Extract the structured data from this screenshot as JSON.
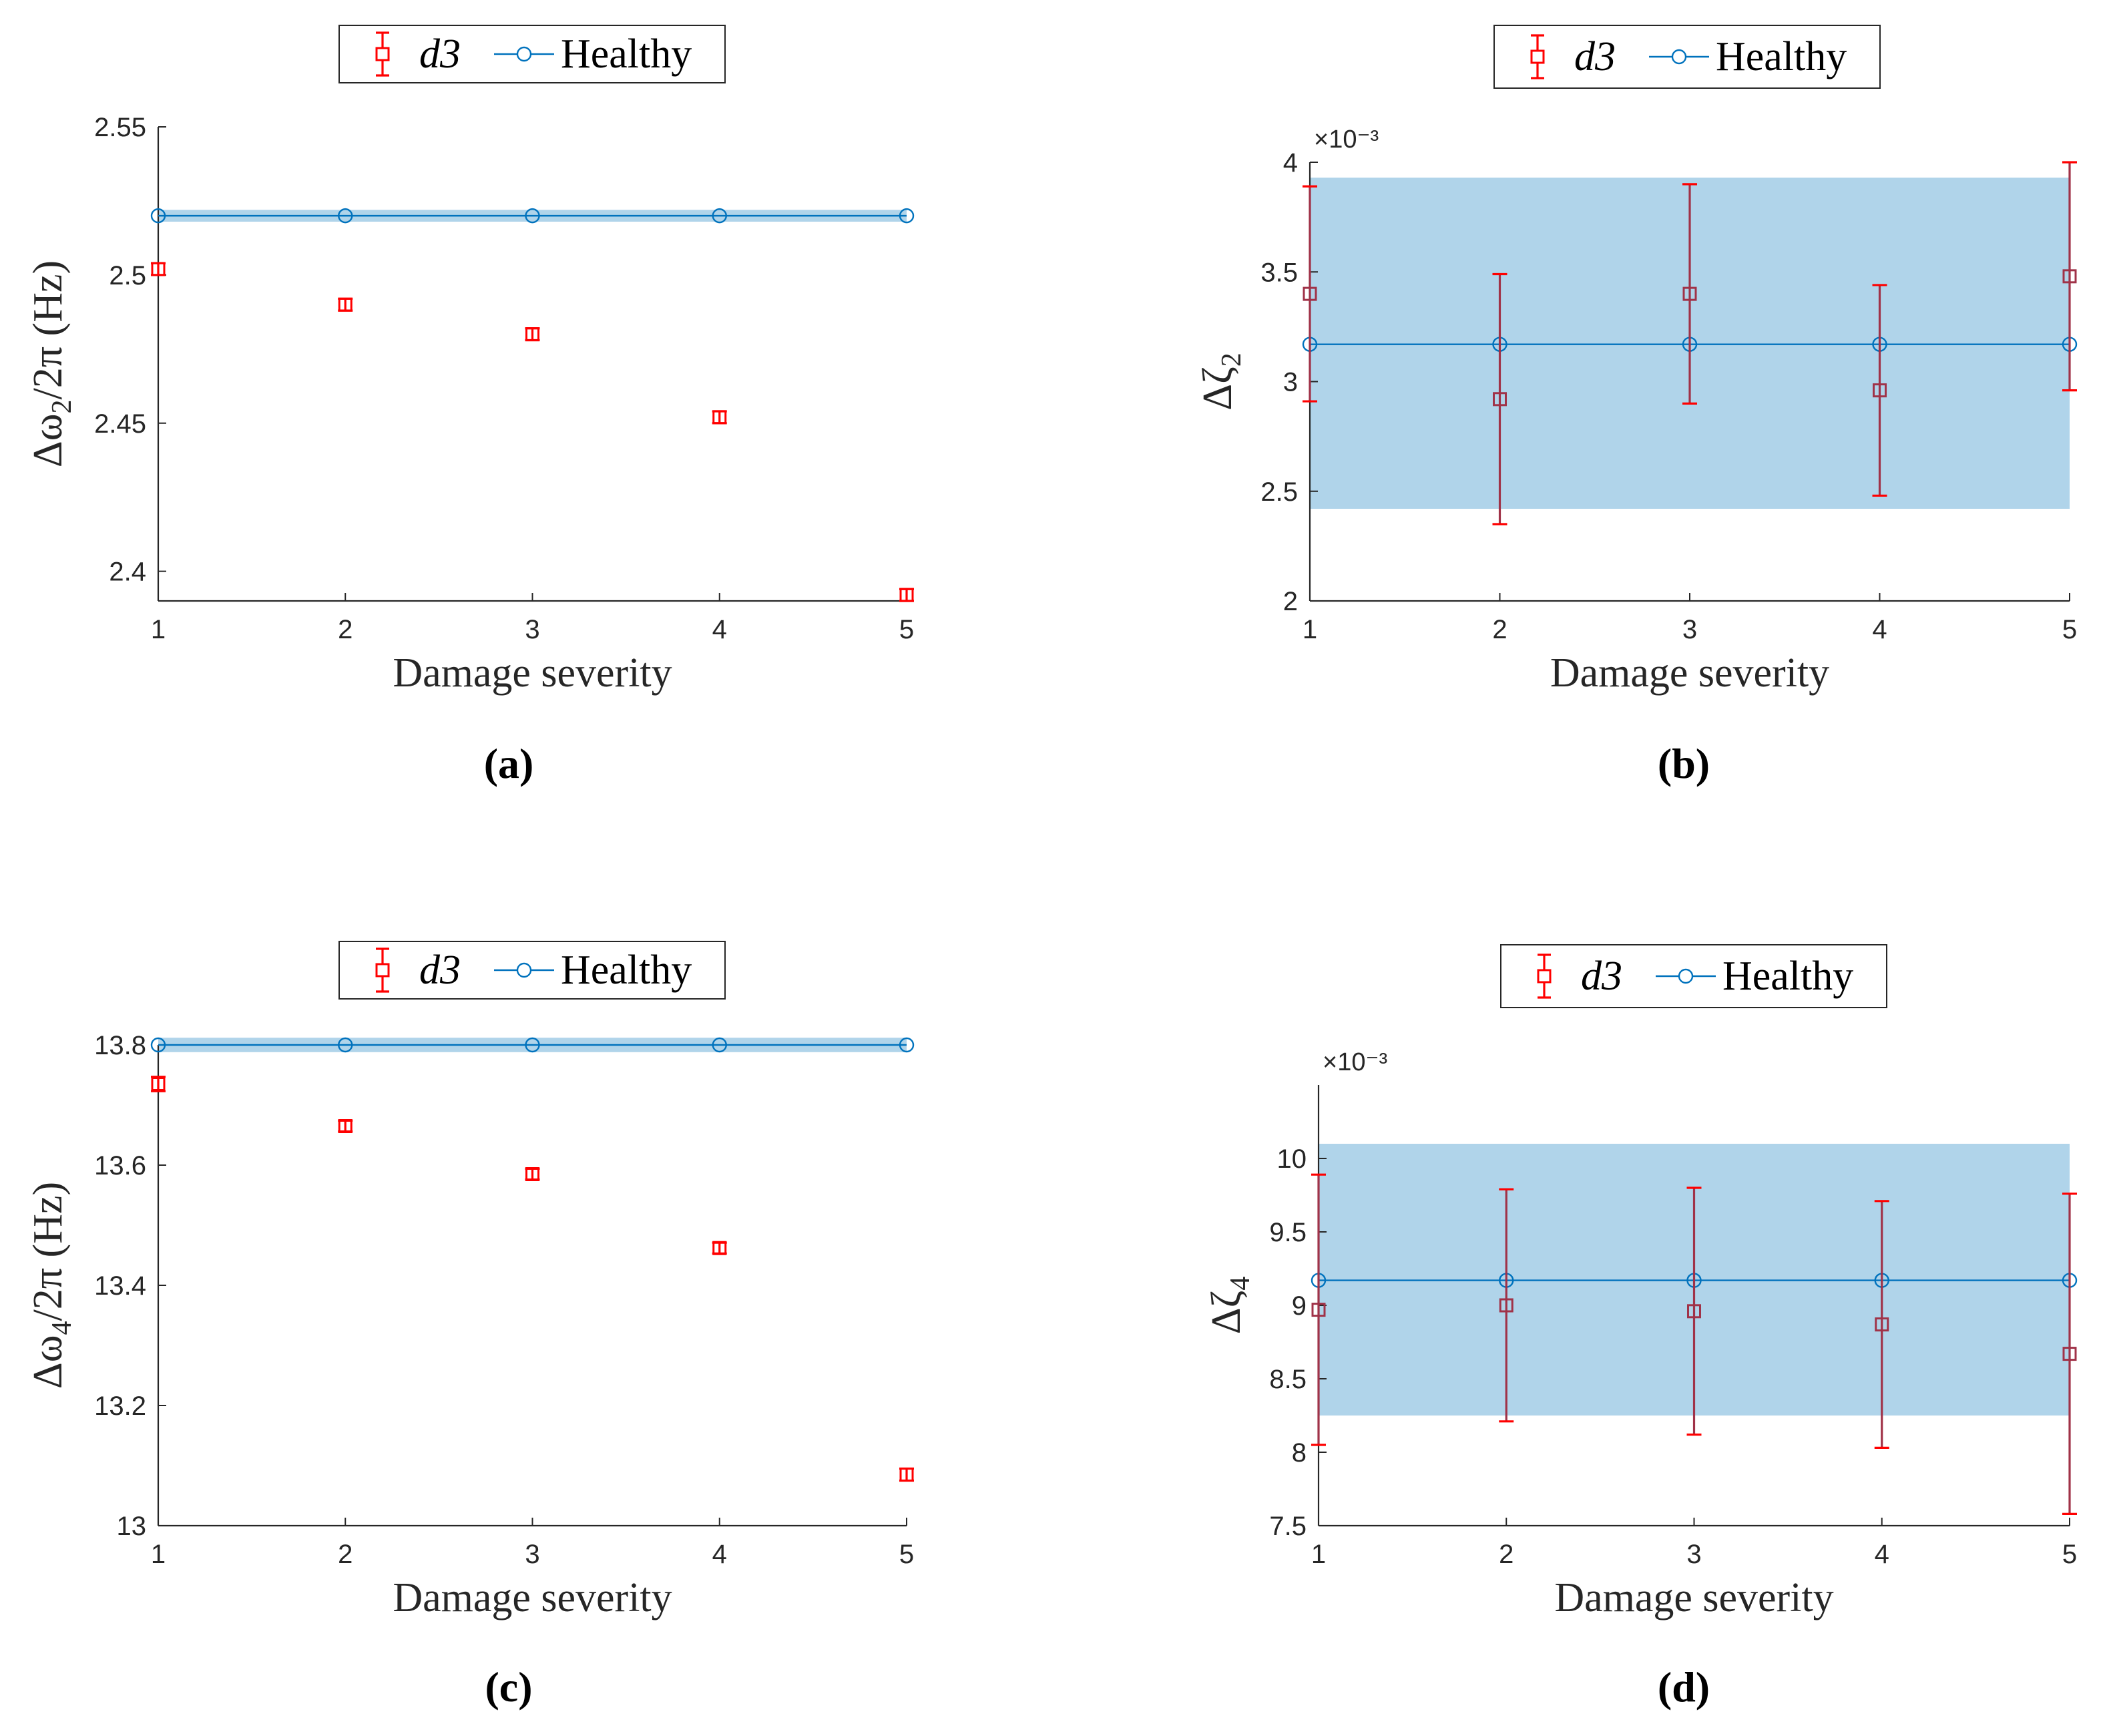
{
  "colors": {
    "damage": "#ff0000",
    "damage_box_overlap": "#a03248",
    "healthy": "#0072bd",
    "healthy_band": "#b0d4ea",
    "axis": "#262626"
  },
  "chart_data": [
    {
      "type": "scatter",
      "panel_caption": "(a)",
      "xlabel": "Damage severity",
      "ylabel": "Δω₂/2π (Hz)",
      "ylabel_main": "Δω",
      "ylabel_sub": "2",
      "ylabel_rest": "/2π (Hz)",
      "x_ticks": [
        "1",
        "2",
        "3",
        "4",
        "5"
      ],
      "y_ticks": [
        "2.4",
        "2.45",
        "2.5",
        "2.55"
      ],
      "y_exponent": "",
      "xlim": [
        1,
        5
      ],
      "ylim": [
        2.39,
        2.55
      ],
      "grid": false,
      "legend_position": "top-center",
      "series": [
        {
          "name": "d3",
          "marker": "square",
          "x": [
            1,
            2,
            3,
            4,
            5
          ],
          "y": [
            2.502,
            2.49,
            2.48,
            2.452,
            2.392
          ],
          "err": [
            0.002,
            0.002,
            0.002,
            0.002,
            0.002
          ]
        },
        {
          "name": "Healthy",
          "marker": "circle",
          "x": [
            1,
            2,
            3,
            4,
            5
          ],
          "y": [
            2.52,
            2.52,
            2.52,
            2.52,
            2.52
          ],
          "band": [
            2.518,
            2.522
          ]
        }
      ]
    },
    {
      "type": "scatter",
      "panel_caption": "(b)",
      "xlabel": "Damage severity",
      "ylabel": "Δζ₂",
      "ylabel_main": "Δζ",
      "ylabel_sub": "2",
      "ylabel_rest": "",
      "x_ticks": [
        "1",
        "2",
        "3",
        "4",
        "5"
      ],
      "y_ticks": [
        "2",
        "2.5",
        "3",
        "3.5",
        "4"
      ],
      "y_exponent": "×10⁻³",
      "xlim": [
        1,
        5
      ],
      "ylim": [
        2.0,
        4.0
      ],
      "grid": false,
      "legend_position": "top-center",
      "series": [
        {
          "name": "d3",
          "marker": "square",
          "x": [
            1,
            2,
            3,
            4,
            5
          ],
          "y": [
            3.4,
            2.92,
            3.4,
            2.96,
            3.48
          ],
          "err": [
            0.49,
            0.57,
            0.5,
            0.48,
            0.52
          ]
        },
        {
          "name": "Healthy",
          "marker": "circle",
          "x": [
            1,
            2,
            3,
            4,
            5
          ],
          "y": [
            3.17,
            3.17,
            3.17,
            3.17,
            3.17
          ],
          "band": [
            2.42,
            3.93
          ]
        }
      ]
    },
    {
      "type": "scatter",
      "panel_caption": "(c)",
      "xlabel": "Damage severity",
      "ylabel": "Δω₄/2π (Hz)",
      "ylabel_main": "Δω",
      "ylabel_sub": "4",
      "ylabel_rest": "/2π (Hz)",
      "x_ticks": [
        "1",
        "2",
        "3",
        "4",
        "5"
      ],
      "y_ticks": [
        "13",
        "13.2",
        "13.4",
        "13.6",
        "13.8"
      ],
      "y_exponent": "",
      "xlim": [
        1,
        5
      ],
      "ylim": [
        13.0,
        13.8
      ],
      "grid": false,
      "legend_position": "top-center",
      "series": [
        {
          "name": "d3",
          "marker": "square",
          "x": [
            1,
            2,
            3,
            4,
            5
          ],
          "y": [
            13.735,
            13.665,
            13.585,
            13.462,
            13.085
          ],
          "err": [
            0.012,
            0.009,
            0.009,
            0.009,
            0.01
          ]
        },
        {
          "name": "Healthy",
          "marker": "circle",
          "x": [
            1,
            2,
            3,
            4,
            5
          ],
          "y": [
            13.8,
            13.8,
            13.8,
            13.8,
            13.8
          ],
          "band": [
            13.788,
            13.812
          ]
        }
      ]
    },
    {
      "type": "scatter",
      "panel_caption": "(d)",
      "xlabel": "Damage severity",
      "ylabel": "Δζ₄",
      "ylabel_main": "Δζ",
      "ylabel_sub": "4",
      "ylabel_rest": "",
      "x_ticks": [
        "1",
        "2",
        "3",
        "4",
        "5"
      ],
      "y_ticks": [
        "7.5",
        "8",
        "8.5",
        "9",
        "9.5",
        "10"
      ],
      "y_exponent": "×10⁻³",
      "xlim": [
        1,
        5
      ],
      "ylim": [
        7.5,
        10.5
      ],
      "grid": false,
      "legend_position": "top-center",
      "series": [
        {
          "name": "d3",
          "marker": "square",
          "x": [
            1,
            2,
            3,
            4,
            5
          ],
          "y": [
            8.97,
            9.0,
            8.96,
            8.87,
            8.67
          ],
          "err": [
            0.92,
            0.79,
            0.84,
            0.84,
            1.09
          ]
        },
        {
          "name": "Healthy",
          "marker": "circle",
          "x": [
            1,
            2,
            3,
            4,
            5
          ],
          "y": [
            9.17,
            9.17,
            9.17,
            9.17,
            9.17
          ],
          "band": [
            8.25,
            10.1
          ]
        }
      ]
    }
  ]
}
